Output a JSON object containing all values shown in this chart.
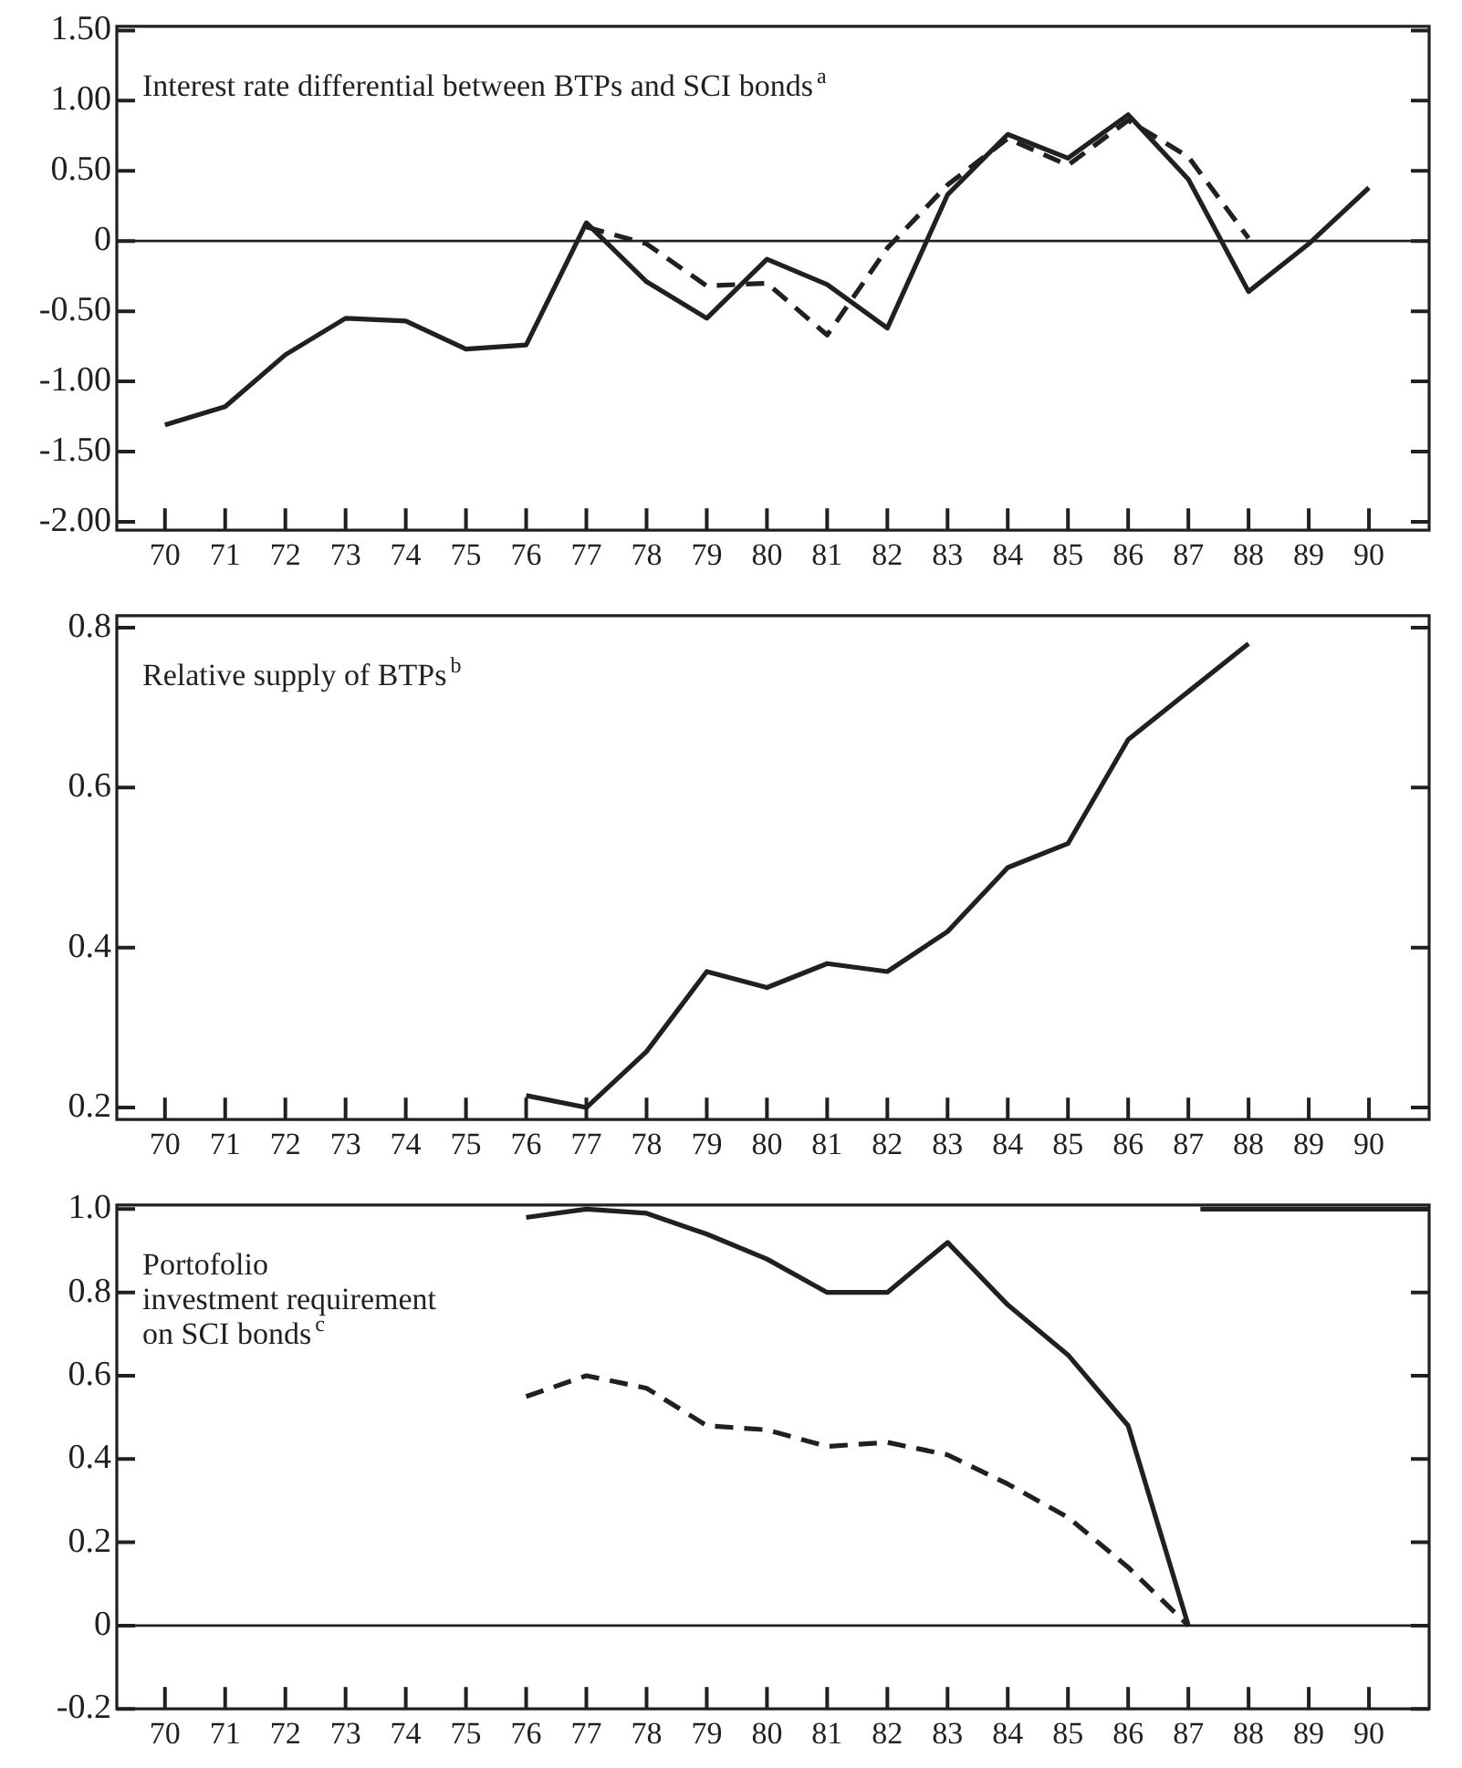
{
  "chart_data": [
    {
      "type": "line",
      "title": "Interest rate differential between BTPs and SCI bonds$^{a}$",
      "x": [
        70,
        71,
        72,
        73,
        74,
        75,
        76,
        77,
        78,
        79,
        80,
        81,
        82,
        83,
        84,
        85,
        86,
        87,
        88,
        89,
        90
      ],
      "xlim": [
        69.2,
        91.0
      ],
      "xticks": [
        70,
        71,
        72,
        73,
        74,
        75,
        76,
        77,
        78,
        79,
        80,
        81,
        82,
        83,
        84,
        85,
        86,
        87,
        88,
        89,
        90
      ],
      "ylim": [
        -2.06,
        1.53
      ],
      "yticks": [
        {
          "value": 1.5,
          "label": "1.50"
        },
        {
          "value": 1,
          "label": "1.00"
        },
        {
          "value": 0.5,
          "label": "0.50"
        },
        0,
        {
          "value": -0.5,
          "label": "-0.50"
        },
        {
          "value": -1,
          "label": "-1.00"
        },
        {
          "value": -1.5,
          "label": "-1.50"
        },
        {
          "value": -2,
          "label": "-2.00"
        }
      ],
      "grid": false,
      "legend": false,
      "marker": "none",
      "ref_lines": [
        {
          "axis": "y",
          "value": 0
        }
      ],
      "series": [
        {
          "color": "#231f20",
          "line_style": "solid",
          "values": [
            -1.31,
            -1.18,
            -0.81,
            -0.55,
            -0.57,
            -0.77,
            -0.74,
            0.13,
            -0.29,
            -0.55,
            -0.13,
            -0.31,
            -0.62,
            0.33,
            0.76,
            0.59,
            0.9,
            0.44,
            -0.36,
            -0.02,
            0.38
          ]
        },
        {
          "color": "#231f20",
          "line_style": "dashed",
          "values": [
            null,
            null,
            null,
            null,
            null,
            null,
            null,
            0.1,
            -0.02,
            -0.32,
            -0.3,
            -0.67,
            -0.05,
            0.4,
            0.73,
            0.54,
            0.86,
            0.6,
            0.02,
            null,
            null
          ]
        }
      ]
    },
    {
      "type": "line",
      "title": "Relative supply of BTPs$^{b}$",
      "x": [
        76,
        77,
        78,
        79,
        80,
        81,
        82,
        83,
        84,
        85,
        86,
        87,
        88
      ],
      "xlim": [
        69.2,
        91.0
      ],
      "xticks": [
        70,
        71,
        72,
        73,
        74,
        75,
        76,
        77,
        78,
        79,
        80,
        81,
        82,
        83,
        84,
        85,
        86,
        87,
        88,
        89,
        90
      ],
      "ylim": [
        0.185,
        0.815
      ],
      "yticks": [
        0.8,
        0.6,
        0.4,
        0.2
      ],
      "grid": false,
      "legend": false,
      "marker": "none",
      "series": [
        {
          "color": "#231f20",
          "line_style": "solid",
          "values": [
            0.215,
            0.2,
            0.27,
            0.37,
            0.35,
            0.38,
            0.37,
            0.42,
            0.5,
            0.53,
            0.66,
            0.72,
            0.78
          ]
        }
      ]
    },
    {
      "type": "line",
      "title": "Portofolio\ninvestment requirement\non SCI bonds$^{c}$",
      "x": [
        76,
        77,
        78,
        79,
        80,
        81,
        82,
        83,
        84,
        85,
        86,
        87
      ],
      "xlim": [
        69.2,
        91.0
      ],
      "xticks": [
        70,
        71,
        72,
        73,
        74,
        75,
        76,
        77,
        78,
        79,
        80,
        81,
        82,
        83,
        84,
        85,
        86,
        87,
        88,
        89,
        90
      ],
      "ylim": [
        -0.2,
        1.01
      ],
      "yticks": [
        {
          "value": 1,
          "label": "1.0"
        },
        0.8,
        0.6,
        0.4,
        0.2,
        0,
        -0.2
      ],
      "grid": false,
      "legend": false,
      "marker": "none",
      "ref_lines": [
        {
          "axis": "y",
          "value": 0
        }
      ],
      "series": [
        {
          "color": "#231f20",
          "line_style": "solid",
          "values": [
            0.98,
            1.0,
            0.99,
            0.94,
            0.88,
            0.8,
            0.8,
            0.92,
            0.77,
            0.65,
            0.48,
            0.0
          ]
        },
        {
          "color": "#231f20",
          "line_style": "solid",
          "x": [
            87.2,
            91.0
          ],
          "values": [
            1.0,
            1.0
          ]
        },
        {
          "color": "#231f20",
          "line_style": "dashed",
          "values": [
            0.55,
            0.6,
            0.57,
            0.48,
            0.47,
            0.43,
            0.44,
            0.41,
            0.34,
            0.26,
            0.14,
            0.0
          ]
        }
      ]
    }
  ]
}
